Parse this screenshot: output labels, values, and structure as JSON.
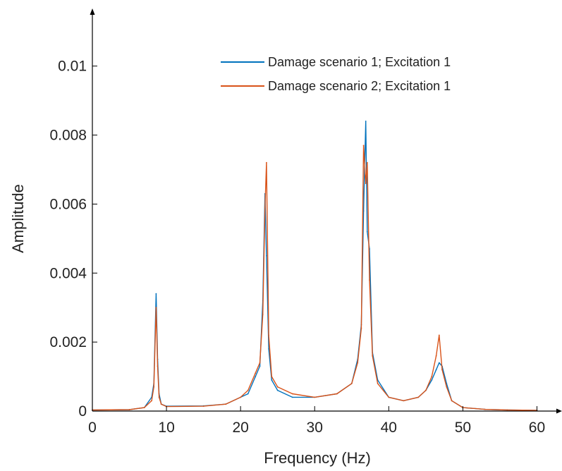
{
  "chart_data": {
    "type": "line",
    "title": "",
    "xlabel": "Frequency (Hz)",
    "ylabel": "Amplitude",
    "xlim": [
      0,
      63
    ],
    "ylim": [
      0,
      0.0112
    ],
    "grid": false,
    "legend_position": "top-right",
    "x_ticks": [
      0,
      10,
      20,
      30,
      40,
      50,
      60
    ],
    "x_tick_labels": [
      "0",
      "10",
      "20",
      "30",
      "40",
      "50",
      "60"
    ],
    "y_ticks": [
      0,
      0.002,
      0.004,
      0.006,
      0.008,
      0.01
    ],
    "y_tick_labels": [
      "0",
      "0.002",
      "0.004",
      "0.006",
      "0.008",
      "0.01"
    ],
    "series": [
      {
        "name": "Damage scenario 1; Excitation 1",
        "color": "#0072BD",
        "x": [
          0,
          5,
          7,
          8,
          8.3,
          8.6,
          8.8,
          9.0,
          9.3,
          10,
          15,
          18,
          20,
          21,
          22,
          22.6,
          23.0,
          23.3,
          23.5,
          23.8,
          24.2,
          25,
          27,
          30,
          33,
          35,
          35.8,
          36.3,
          36.6,
          36.9,
          37.1,
          37.4,
          37.8,
          38.5,
          40,
          42,
          44,
          45,
          45.8,
          46.4,
          46.8,
          47.2,
          47.8,
          48.5,
          50,
          53,
          56,
          60
        ],
        "values": [
          3e-05,
          4e-05,
          0.0001,
          0.0004,
          0.0008,
          0.0034,
          0.0015,
          0.0005,
          0.0002,
          0.00014,
          0.00015,
          0.0002,
          0.0004,
          0.0005,
          0.001,
          0.0013,
          0.0032,
          0.0063,
          0.0045,
          0.0018,
          0.0009,
          0.0006,
          0.0004,
          0.0004,
          0.0005,
          0.0008,
          0.0015,
          0.0025,
          0.0058,
          0.0084,
          0.0052,
          0.0047,
          0.0017,
          0.0009,
          0.0004,
          0.0003,
          0.0004,
          0.0006,
          0.0009,
          0.0012,
          0.0014,
          0.0013,
          0.0008,
          0.0003,
          0.0001,
          5e-05,
          3e-05,
          2e-05
        ]
      },
      {
        "name": "Damage scenario 2; Excitation 1",
        "color": "#D95319",
        "x": [
          0,
          5,
          7,
          8,
          8.3,
          8.6,
          8.8,
          9.0,
          9.3,
          10,
          15,
          18,
          20,
          21,
          22,
          22.6,
          23.0,
          23.3,
          23.5,
          23.8,
          24.2,
          25,
          27,
          30,
          33,
          35,
          35.8,
          36.3,
          36.6,
          36.9,
          37.1,
          37.4,
          37.8,
          38.5,
          40,
          42,
          44,
          45,
          45.8,
          46.4,
          46.8,
          47.2,
          47.8,
          48.5,
          50,
          53,
          56,
          60
        ],
        "values": [
          3e-05,
          4e-05,
          0.0001,
          0.0003,
          0.0007,
          0.003,
          0.0013,
          0.0004,
          0.0002,
          0.00013,
          0.00014,
          0.0002,
          0.0004,
          0.0006,
          0.0011,
          0.0014,
          0.0028,
          0.0059,
          0.0072,
          0.0022,
          0.001,
          0.0007,
          0.0005,
          0.0004,
          0.0005,
          0.0008,
          0.0014,
          0.0024,
          0.0077,
          0.0066,
          0.0072,
          0.0038,
          0.0016,
          0.0008,
          0.0004,
          0.0003,
          0.0004,
          0.0006,
          0.001,
          0.0016,
          0.0022,
          0.0012,
          0.0007,
          0.0003,
          0.0001,
          5e-05,
          3e-05,
          2e-05
        ]
      }
    ]
  }
}
